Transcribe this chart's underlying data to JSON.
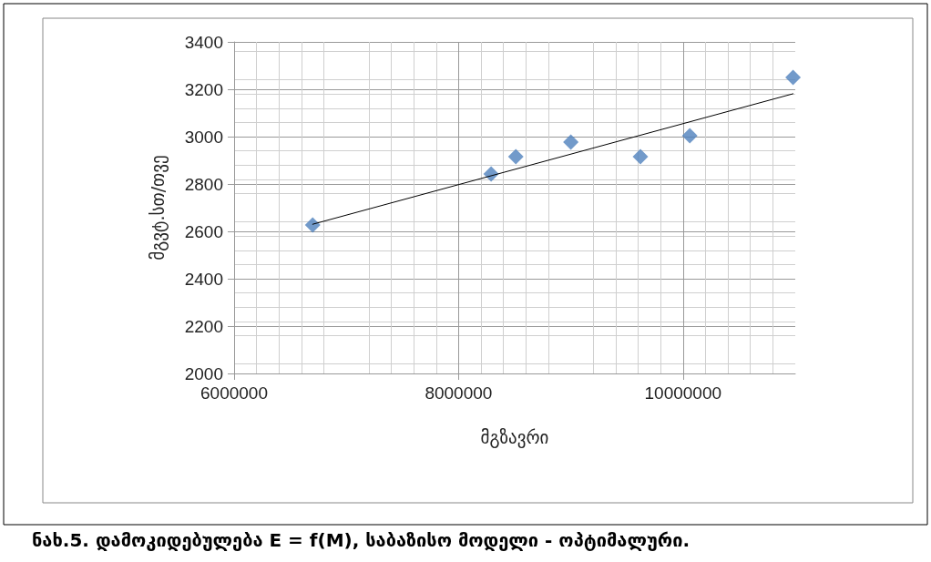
{
  "chart_data": {
    "type": "scatter",
    "xlabel": "მგზავრი",
    "ylabel": "მგვტ.სთ/თვე",
    "x": [
      6700000,
      8290000,
      8510000,
      9000000,
      9620000,
      10060000,
      10980000
    ],
    "series": [
      {
        "color": "#4f81bd",
        "marker": "diamond",
        "values": [
          2627,
          2842,
          2915,
          2977,
          2915,
          3004,
          3250
        ]
      },
      {
        "type": "line",
        "color": "#000000",
        "marker": "none",
        "x": [
          6700000,
          10980000
        ],
        "values": [
          2630,
          3181
        ]
      }
    ],
    "xlim": [
      6000000,
      11000000
    ],
    "xticks": [
      6000000,
      8000000,
      10000000
    ],
    "ylim": [
      2000,
      3400
    ],
    "yticks": [
      2000,
      2200,
      2400,
      2600,
      2800,
      3000,
      3200,
      3400
    ],
    "grid": true,
    "annotations": [
      "ნახ.5. დამოკიდებულება E = f(M), საბაზისო მოდელი - ოპტიმალური."
    ]
  }
}
